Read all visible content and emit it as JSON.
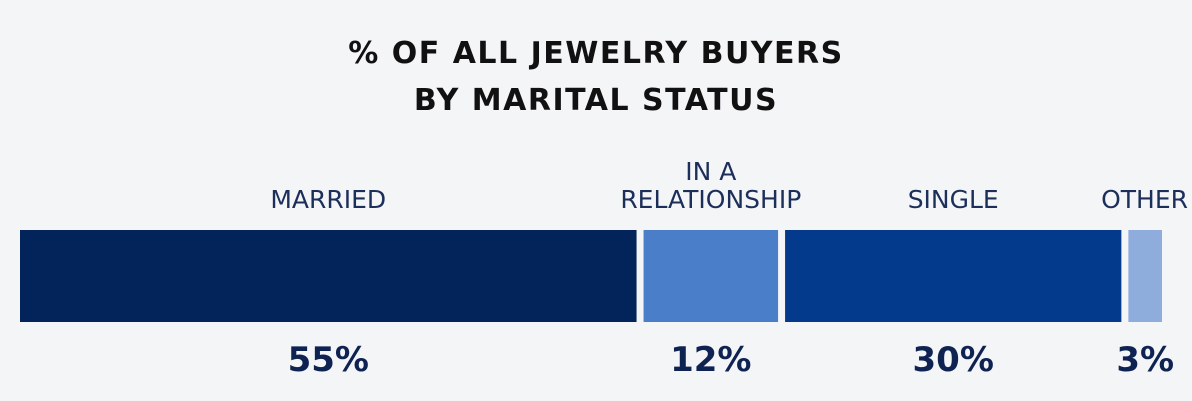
{
  "chart_data": {
    "type": "bar",
    "stacked": true,
    "orientation": "horizontal",
    "title_lines": [
      "% OF ALL JEWELRY BUYERS",
      "BY MARITAL STATUS"
    ],
    "unit": "%",
    "categories": [
      {
        "label_lines": [
          "MARRIED"
        ],
        "value": 55,
        "value_label": "55%",
        "color": "#02245a"
      },
      {
        "label_lines": [
          "IN A",
          "RELATIONSHIP"
        ],
        "value": 12,
        "value_label": "12%",
        "color": "#4a7ec9"
      },
      {
        "label_lines": [
          "SINGLE"
        ],
        "value": 30,
        "value_label": "30%",
        "color": "#033a8b"
      },
      {
        "label_lines": [
          "OTHER"
        ],
        "value": 3,
        "value_label": "3%",
        "color": "#8eaddd"
      }
    ],
    "total": 100
  }
}
